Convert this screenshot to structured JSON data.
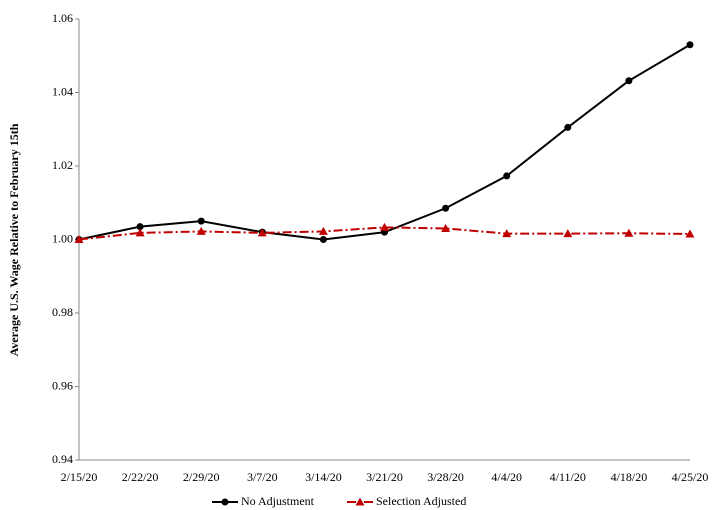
{
  "chart_data": {
    "type": "line",
    "y_label": "Average U.S. Wage Relative to February 15th",
    "categories": [
      "2/15/20",
      "2/22/20",
      "2/29/20",
      "3/7/20",
      "3/14/20",
      "3/21/20",
      "3/28/20",
      "4/4/20",
      "4/11/20",
      "4/18/20",
      "4/25/20"
    ],
    "series": [
      {
        "name": "No Adjustment",
        "color": "#000000",
        "linestyle": "solid",
        "marker": "circle",
        "values": [
          1.0,
          1.0035,
          1.005,
          1.002,
          1.0,
          1.002,
          1.0085,
          1.0173,
          1.0305,
          1.0432,
          1.053
        ]
      },
      {
        "name": "Selection Adjusted",
        "color": "#c00000",
        "linestyle": "dashdot",
        "marker": "triangle",
        "values": [
          1.0,
          1.0018,
          1.0022,
          1.0018,
          1.0022,
          1.0033,
          1.003,
          1.0016,
          1.0016,
          1.0017,
          1.0015
        ]
      }
    ],
    "ylim": [
      0.94,
      1.06
    ],
    "yticks": [
      0.94,
      0.96,
      0.98,
      {
        "value": 1,
        "label": "1.00"
      },
      1.02,
      1.04,
      1.06
    ],
    "grid": false,
    "legend": "bottom"
  }
}
